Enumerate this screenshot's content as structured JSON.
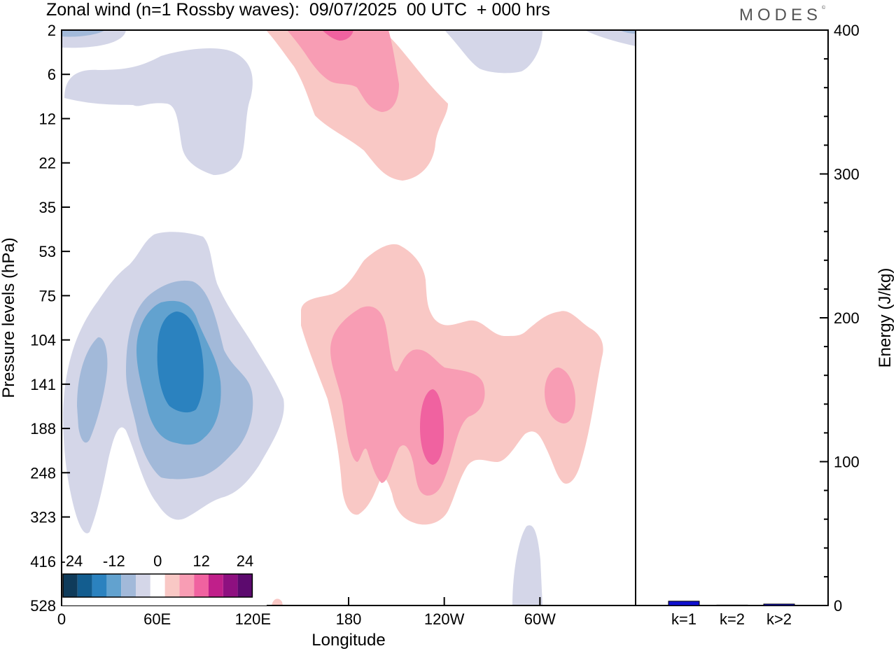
{
  "header": {
    "title": "Zonal wind (n=1 Rossby waves):  09/07/2025  00 UTC  + 000 hrs",
    "brand": "MODES",
    "brand_mark": "©"
  },
  "chart_data": [
    {
      "type": "heatmap",
      "xlabel": "Longitude",
      "ylabel": "Pressure levels (hPa)",
      "x_ticks": [
        "0",
        "60E",
        "120E",
        "180",
        "120W",
        "60W"
      ],
      "x_tick_degrees": [
        0,
        60,
        120,
        180,
        240,
        300
      ],
      "x_range_degrees": [
        0,
        360
      ],
      "y_ticks": [
        "2",
        "6",
        "12",
        "22",
        "35",
        "53",
        "75",
        "104",
        "141",
        "188",
        "248",
        "323",
        "416",
        "528"
      ],
      "y_scale": "ordinal pressure levels (top = 2 hPa, bottom = 528 hPa)",
      "colorbar": {
        "labels": [
          "-24",
          "-12",
          "0",
          "12",
          "24"
        ],
        "levels": [
          -24,
          -20,
          -16,
          -12,
          -8,
          -4,
          0,
          4,
          8,
          12,
          16,
          20,
          24
        ],
        "colors": [
          "#0f3b5a",
          "#135d8f",
          "#2b82bf",
          "#62a2cf",
          "#a2b9d9",
          "#d4d6e8",
          "#ffffff",
          "#f9c8c5",
          "#f89db4",
          "#f062a0",
          "#c01f8a",
          "#8e1080",
          "#5c0a6e"
        ]
      },
      "regions": [
        {
          "name": "upper-left negative",
          "sign": "negative",
          "lon_range": [
            0,
            120
          ],
          "level_range": [
            "2",
            "22"
          ],
          "min_value": -4
        },
        {
          "name": "upper stratosphere positive",
          "sign": "positive",
          "lon_range": [
            130,
            250
          ],
          "level_range": [
            "2",
            "22"
          ],
          "max_value": 12
        },
        {
          "name": "upper-right negative",
          "sign": "negative",
          "lon_range": [
            245,
            360
          ],
          "level_range": [
            "2",
            "6"
          ],
          "min_value": -4
        },
        {
          "name": "main negative core",
          "sign": "negative",
          "lon_range": [
            0,
            140
          ],
          "level_range": [
            "53",
            "323"
          ],
          "min_value": -16
        },
        {
          "name": "main positive region",
          "sign": "positive",
          "lon_range": [
            150,
            340
          ],
          "level_range": [
            "53",
            "323"
          ],
          "max_value": 12
        },
        {
          "name": "near-surface negative",
          "sign": "negative",
          "lon_range": [
            283,
            300
          ],
          "level_range": [
            "323",
            "528"
          ],
          "min_value": -4
        }
      ]
    },
    {
      "type": "bar",
      "categories": [
        "k=1",
        "k=2",
        "k>2"
      ],
      "values": [
        3,
        0.3,
        1
      ],
      "ylabel": "Energy (J/kg)",
      "ylim": [
        0,
        400
      ],
      "y_ticks": [
        "0",
        "100",
        "200",
        "300",
        "400"
      ],
      "y_tick_values": [
        0,
        100,
        200,
        300,
        400
      ],
      "bar_colors": [
        "#1010d0",
        "#1010d0",
        "#1010d0"
      ]
    }
  ]
}
